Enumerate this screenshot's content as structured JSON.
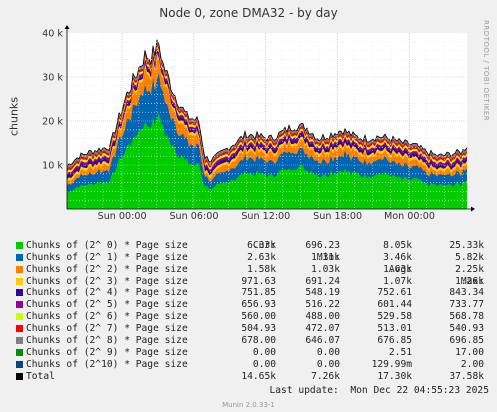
{
  "chart_data": {
    "type": "area",
    "title": "Node 0, zone DMA32 - by day",
    "ylabel": "chunks",
    "ylim": [
      0,
      40000
    ],
    "yticks": [
      {
        "v": 10000,
        "label": "10 k"
      },
      {
        "v": 20000,
        "label": "20 k"
      },
      {
        "v": 30000,
        "label": "30 k"
      },
      {
        "v": 40000,
        "label": "40 k"
      }
    ],
    "x_range": [
      0,
      33.4
    ],
    "xticks": [
      {
        "v": 4.6,
        "label": "Sun 00:00"
      },
      {
        "v": 10.6,
        "label": "Sun 06:00"
      },
      {
        "v": 16.6,
        "label": "Sun 12:00"
      },
      {
        "v": 22.6,
        "label": "Sun 18:00"
      },
      {
        "v": 28.6,
        "label": "Mon 00:00"
      }
    ],
    "grid": true,
    "total_profile": {
      "x": [
        0,
        1,
        2,
        3,
        3.6,
        4,
        5,
        6,
        6.5,
        7,
        7.7,
        8,
        9,
        10,
        11,
        11.5,
        12,
        13,
        14,
        15,
        16,
        17,
        18,
        19,
        20,
        21,
        22,
        23,
        24,
        25,
        26,
        27,
        28,
        29,
        30,
        31,
        32,
        33,
        33.4
      ],
      "y": [
        9800,
        12000,
        13000,
        13800,
        14200,
        18000,
        26000,
        32000,
        35000,
        34500,
        37500,
        33000,
        26000,
        21000,
        20000,
        12000,
        11000,
        13000,
        15000,
        17000,
        16500,
        16000,
        17500,
        19000,
        18500,
        16000,
        17000,
        18000,
        16500,
        16000,
        16500,
        16000,
        15000,
        14500,
        13000,
        12000,
        12500,
        13000,
        14500
      ]
    },
    "series": [
      {
        "name": "Chunks of (2^ 0) * Page size",
        "color": "#00cc00",
        "cur": "6.33k",
        "min": "696.23",
        "avg": "8.05k",
        "max": "25.33k"
      },
      {
        "name": "Chunks of (2^ 1) * Page size",
        "color": "#0066b3",
        "cur": "2.63k",
        "min": "1.31k",
        "avg": "3.46k",
        "max": "5.82k"
      },
      {
        "name": "Chunks of (2^ 2) * Page size",
        "color": "#ff8000",
        "cur": "1.58k",
        "min": "1.03k",
        "avg": "1.63k",
        "max": "2.25k"
      },
      {
        "name": "Chunks of (2^ 3) * Page size",
        "color": "#ffcc00",
        "cur": "971.63",
        "min": "691.24",
        "avg": "1.07k",
        "max": "1.26k"
      },
      {
        "name": "Chunks of (2^ 4) * Page size",
        "color": "#330099",
        "cur": "751.85",
        "min": "548.19",
        "avg": "752.61",
        "max": "843.34"
      },
      {
        "name": "Chunks of (2^ 5) * Page size",
        "color": "#990099",
        "cur": "656.93",
        "min": "516.22",
        "avg": "601.44",
        "max": "733.77"
      },
      {
        "name": "Chunks of (2^ 6) * Page size",
        "color": "#ccff00",
        "cur": "560.00",
        "min": "488.00",
        "avg": "529.58",
        "max": "568.78"
      },
      {
        "name": "Chunks of (2^ 7) * Page size",
        "color": "#ff0000",
        "cur": "504.93",
        "min": "472.07",
        "avg": "513.01",
        "max": "540.93"
      },
      {
        "name": "Chunks of (2^ 8) * Page size",
        "color": "#808080",
        "cur": "678.00",
        "min": "646.07",
        "avg": "676.85",
        "max": "696.85"
      },
      {
        "name": "Chunks of (2^ 9) * Page size",
        "color": "#008f00",
        "cur": "0.00",
        "min": "0.00",
        "avg": "2.51",
        "max": "17.00"
      },
      {
        "name": "Chunks of (2^10) * Page size",
        "color": "#00487d",
        "cur": "0.00",
        "min": "0.00",
        "avg": "129.99m",
        "max": "2.00"
      },
      {
        "name": "Total",
        "color": "#000000",
        "cur": "14.65k",
        "min": "7.26k",
        "avg": "17.30k",
        "max": "37.58k"
      }
    ]
  },
  "legend_header": {
    "cur": "Cur:",
    "min": "Min:",
    "avg": "Avg:",
    "max": "Max:"
  },
  "last_update": "Last update:  Mon Dec 22 04:55:23 2025",
  "watermark": "RRDTOOL / TOBI OETIKER",
  "footer": "Munin 2.0.33-1"
}
